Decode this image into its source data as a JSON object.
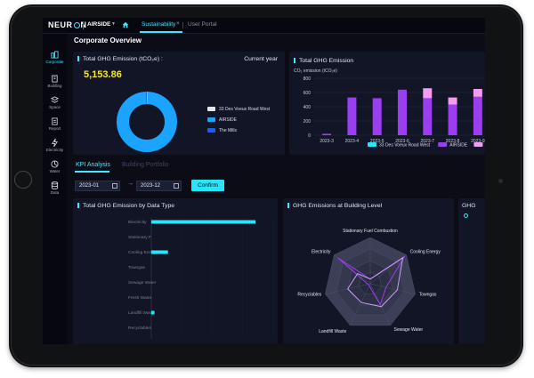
{
  "app": {
    "logo": "NEURON",
    "site": "AIRSIDE",
    "tabs": [
      {
        "label": "Sustainability",
        "active": true
      },
      {
        "label": "User Portal",
        "active": false
      }
    ],
    "accent_color": "#3ee8ff"
  },
  "sidebar": {
    "items": [
      {
        "label": "Corporate",
        "icon": "corporate-icon",
        "active": true
      },
      {
        "label": "Building",
        "icon": "building-icon"
      },
      {
        "label": "Space",
        "icon": "space-icon"
      },
      {
        "label": "Report",
        "icon": "report-icon"
      },
      {
        "label": "Electricity",
        "icon": "lightning-icon"
      },
      {
        "label": "Water",
        "icon": "water-icon"
      },
      {
        "label": "Data",
        "icon": "database-icon"
      }
    ]
  },
  "page": {
    "title": "Corporate Overview"
  },
  "emission_card": {
    "title": "Total GHG Emission (tCO₂e) :",
    "period": "Current year",
    "value": "5,153.86",
    "legend": [
      {
        "label": "33 Des Voeux Road West",
        "color": "#e6e6e6"
      },
      {
        "label": "AIRSIDE",
        "color": "#1aa3ff"
      },
      {
        "label": "The Mills",
        "color": "#1f5fe8"
      }
    ]
  },
  "kpi": {
    "tabs": [
      "KPI Analysis",
      "Building Portfolio"
    ],
    "start_date": "2023-01",
    "end_date": "2023-12",
    "arrow": "→",
    "confirm_label": "Confirm"
  },
  "data_type_card": {
    "title": "Total GHG Emission by Data Type"
  },
  "building_level_card": {
    "title": "GHG Emissions at Building Level"
  },
  "extra_card": {
    "title": "GHG"
  },
  "chart_data": [
    {
      "type": "pie",
      "title": "Total GHG Emission (tCO₂e) :",
      "series": [
        {
          "name": "33 Des Voeux Road West",
          "value": 0.3
        },
        {
          "name": "AIRSIDE",
          "value": 99.4
        },
        {
          "name": "The Mills",
          "value": 0.3
        }
      ]
    },
    {
      "type": "bar",
      "title": "Total GHG Emission",
      "ylabel": "CO₂ emission (tCO₂e)",
      "ylim": [
        0,
        800
      ],
      "yticks": [
        0,
        200,
        400,
        600,
        800
      ],
      "categories": [
        "2023-3",
        "2023-4",
        "2023-5",
        "2023-6",
        "2023-7",
        "2023-8",
        "2023-9"
      ],
      "series": [
        {
          "name": "33 Des Voeux Road West",
          "color": "#2ae4f8",
          "values": [
            0,
            0,
            0,
            0,
            0,
            0,
            0
          ]
        },
        {
          "name": "AIRSIDE",
          "color": "#9b3df0",
          "values": [
            20,
            530,
            520,
            640,
            520,
            430,
            540
          ]
        },
        {
          "name": "The Mills",
          "color": "#f39cf1",
          "values": [
            0,
            0,
            0,
            0,
            140,
            100,
            110
          ]
        }
      ],
      "stacked": true,
      "legend": "bottom"
    },
    {
      "type": "bar",
      "orientation": "horizontal",
      "title": "Total GHG Emission by Data Type",
      "categories": [
        "Electricity",
        "Stationary F",
        "Cooling Energy",
        "Towngas",
        "Sewage Water",
        "Fresh Water",
        "Landfill Waste",
        "Recyclables"
      ],
      "values": [
        100,
        0,
        16,
        0,
        0,
        0,
        3,
        0
      ],
      "color": "#2ae4f8"
    },
    {
      "type": "radar",
      "title": "GHG Emissions at Building Level",
      "axes": [
        "Stationary Fuel Combustion",
        "Cooling Energy",
        "Towngas",
        "Sewage Water",
        "Landfill Waste",
        "Recyclables",
        "Electricity"
      ],
      "series": [
        {
          "name": "AIRSIDE",
          "color": "#9b3df0",
          "values": [
            0.1,
            0.95,
            0.35,
            0.5,
            0.05,
            0.05,
            0.9
          ]
        },
        {
          "name": "The Mills",
          "color": "#c9a0f5",
          "values": [
            0.1,
            0.9,
            0.6,
            0.55,
            0.45,
            0.5,
            0.35
          ]
        }
      ]
    }
  ]
}
